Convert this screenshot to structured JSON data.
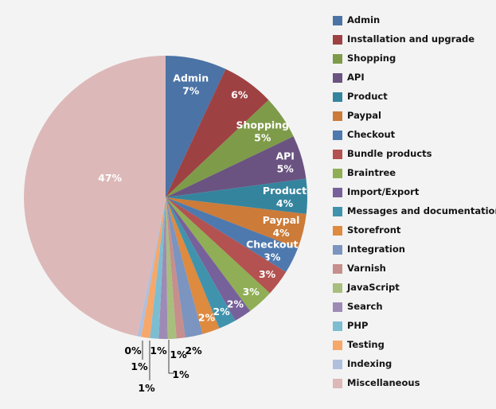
{
  "chart_data": {
    "type": "pie",
    "title": "",
    "legend_position": "right",
    "rotation": "first slice starts at 12 o'clock, clockwise",
    "unit": "%",
    "categories": [
      "Admin",
      "Installation and upgrade",
      "Shopping",
      "API",
      "Product",
      "Paypal",
      "Checkout",
      "Bundle products",
      "Braintree",
      "Import/Export",
      "Messages and documentation",
      "Storefront",
      "Integration",
      "Varnish",
      "JavaScript",
      "Search",
      "PHP",
      "Testing",
      "Indexing",
      "Miscellaneous"
    ],
    "values": [
      7,
      6,
      5,
      5,
      4,
      4,
      3,
      3,
      3,
      2,
      2,
      2,
      2,
      1,
      1,
      1,
      1,
      1,
      0,
      47
    ],
    "slices": [
      {
        "label": "Admin",
        "value": 7,
        "pct_label": "7%",
        "color": "#4b73a5"
      },
      {
        "label": "Installation and upgrade",
        "value": 6,
        "pct_label": "6%",
        "color": "#9e4143"
      },
      {
        "label": "Shopping",
        "value": 5,
        "pct_label": "5%",
        "color": "#7e9b49"
      },
      {
        "label": "API",
        "value": 5,
        "pct_label": "5%",
        "color": "#6a5380"
      },
      {
        "label": "Product",
        "value": 4,
        "pct_label": "4%",
        "color": "#35849e"
      },
      {
        "label": "Paypal",
        "value": 4,
        "pct_label": "4%",
        "color": "#cc7b38"
      },
      {
        "label": "Checkout",
        "value": 3,
        "pct_label": "3%",
        "color": "#4e79af"
      },
      {
        "label": "Bundle products",
        "value": 3,
        "pct_label": "3%",
        "color": "#b35250"
      },
      {
        "label": "Braintree",
        "value": 3,
        "pct_label": "3%",
        "color": "#90ae55"
      },
      {
        "label": "Import/Export",
        "value": 2,
        "pct_label": "2%",
        "color": "#77619a"
      },
      {
        "label": "Messages and documentation",
        "value": 2,
        "pct_label": "2%",
        "color": "#4093ad"
      },
      {
        "label": "Storefront",
        "value": 2,
        "pct_label": "2%",
        "color": "#de8a3f"
      },
      {
        "label": "Integration",
        "value": 2,
        "pct_label": "2%",
        "color": "#7b94c0"
      },
      {
        "label": "Varnish",
        "value": 1,
        "pct_label": "1%",
        "color": "#c68e8c"
      },
      {
        "label": "JavaScript",
        "value": 1,
        "pct_label": "1%",
        "color": "#a8be7d"
      },
      {
        "label": "Search",
        "value": 1,
        "pct_label": "1%",
        "color": "#9d8bb5"
      },
      {
        "label": "PHP",
        "value": 1,
        "pct_label": "1%",
        "color": "#7cbdd2"
      },
      {
        "label": "Testing",
        "value": 1,
        "pct_label": "1%",
        "color": "#f6a76a"
      },
      {
        "label": "Indexing",
        "value": 0,
        "pct_label": "0%",
        "color": "#b0bfdd"
      },
      {
        "label": "Miscellaneous",
        "value": 47,
        "pct_label": "47%",
        "color": "#ddb8b8"
      }
    ]
  },
  "colors": {
    "background": "#f3f3f3",
    "inside_label_text": "#ffffff",
    "outside_label_text": "#000000",
    "leader_line": "#3f3f3f",
    "legend_text": "#141414"
  }
}
